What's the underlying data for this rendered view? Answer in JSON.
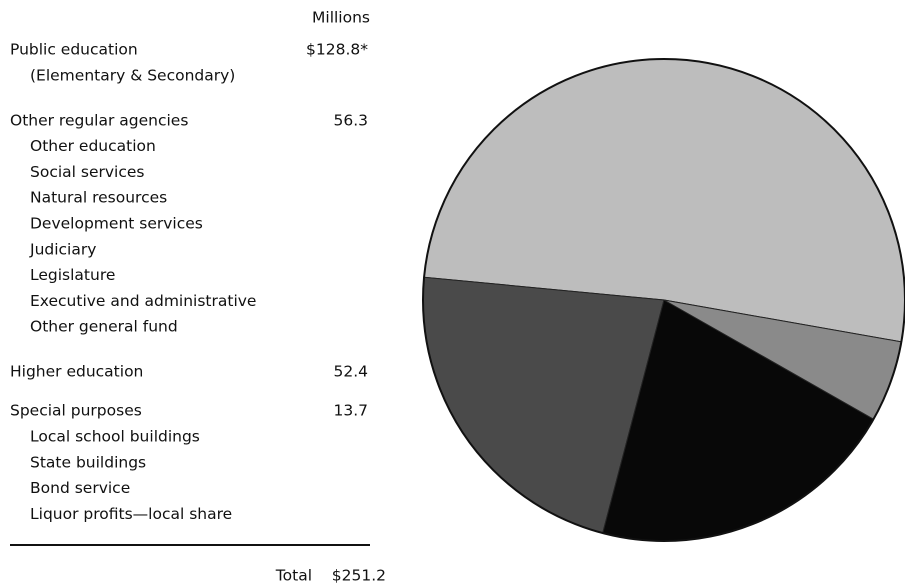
{
  "chart_data": {
    "type": "pie",
    "value_header": "Millions",
    "categories": [
      "Public education",
      "Other regular agencies",
      "Higher education",
      "Special purposes"
    ],
    "details": [
      [
        "(Elementary & Secondary)"
      ],
      [
        "Other education",
        "Social services",
        "Natural resources",
        "Development services",
        "Judiciary",
        "Legislature",
        "Executive and administrative",
        "Other general fund"
      ],
      [],
      [
        "Local school buildings",
        "State buildings",
        "Bond service",
        "Liquor profits—local share"
      ]
    ],
    "values": [
      128.8,
      56.3,
      52.4,
      13.7
    ],
    "value_labels": [
      "$128.8*",
      "56.3",
      "52.4",
      "13.7"
    ],
    "colors": [
      "#bdbdbd",
      "#4a4a4a",
      "#080808",
      "#8a8a8a"
    ],
    "total_label": "Total",
    "total": 251.2,
    "total_value_label": "$251.2"
  }
}
